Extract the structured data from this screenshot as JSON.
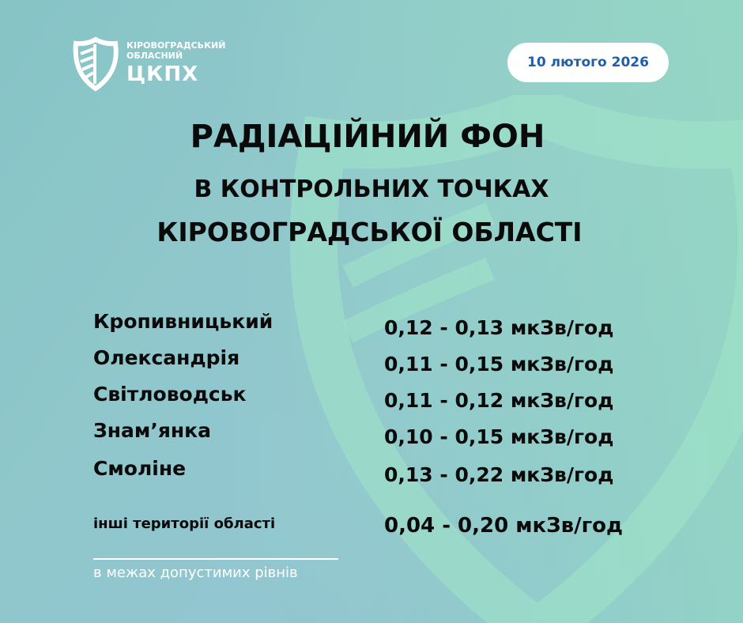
{
  "logo": {
    "line1": "КІРОВОГРАДСЬКИЙ",
    "line2": "ОБЛАСНИЙ",
    "line3": "ЦКПХ"
  },
  "date": "10 лютого 2026",
  "title": {
    "line1": "РАДІАЦІЙНИЙ ФОН",
    "line2": "В КОНТРОЛЬНИХ ТОЧКАХ",
    "line3": "КІРОВОГРАДСЬКОЇ ОБЛАСТІ"
  },
  "rows": [
    {
      "city": "Кропивницький",
      "value": "0,12 - 0,13 мкЗв/год"
    },
    {
      "city": "Олександрія",
      "value": "0,11 - 0,15 мкЗв/год"
    },
    {
      "city": "Світловодськ",
      "value": "0,11 - 0,12 мкЗв/год"
    },
    {
      "city": "Знам’янка",
      "value": "0,10 - 0,15 мкЗв/год"
    },
    {
      "city": "Смоліне",
      "value": "0,13 - 0,22 мкЗв/год"
    }
  ],
  "other": {
    "city": "інші території області",
    "value": "0,04 - 0,20 мкЗв/год"
  },
  "note": "в межах допустимих рівнів",
  "colors": {
    "date_text": "#1f5fa8",
    "title": "#0a0a0a",
    "accent_green": "#9ad9c0"
  }
}
